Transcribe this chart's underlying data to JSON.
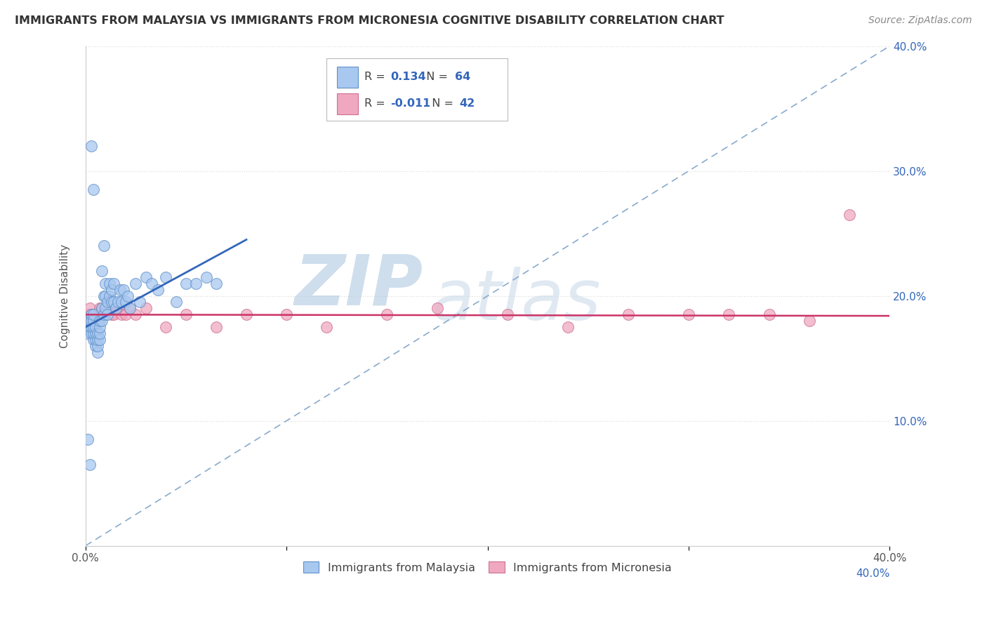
{
  "title": "IMMIGRANTS FROM MALAYSIA VS IMMIGRANTS FROM MICRONESIA COGNITIVE DISABILITY CORRELATION CHART",
  "source": "Source: ZipAtlas.com",
  "ylabel": "Cognitive Disability",
  "xlim": [
    0.0,
    0.4
  ],
  "ylim": [
    0.0,
    0.4
  ],
  "xticks": [
    0.0,
    0.1,
    0.2,
    0.3,
    0.4
  ],
  "yticks": [
    0.0,
    0.1,
    0.2,
    0.3,
    0.4
  ],
  "xticklabels": [
    "0.0%",
    "",
    "",
    "",
    "40.0%"
  ],
  "yticklabels": [
    "",
    "",
    "",
    "",
    ""
  ],
  "right_yticklabels": [
    "",
    "10.0%",
    "20.0%",
    "30.0%",
    "40.0%"
  ],
  "malaysia_color": "#a8c8f0",
  "micronesia_color": "#f0a8c0",
  "malaysia_edge": "#6090c8",
  "micronesia_edge": "#cc7090",
  "malaysia_R": 0.134,
  "malaysia_N": 64,
  "micronesia_R": -0.011,
  "micronesia_N": 42,
  "malaysia_line_color": "#3366bb",
  "micronesia_line_color": "#cc3366",
  "diag_line_color": "#88aacc",
  "watermark_zip": "ZIP",
  "watermark_atlas": "atlas",
  "watermark_color": "#c5d8ec",
  "legend_R_color": "#3366bb",
  "legend_N_color": "#3366bb",
  "right_tick_color": "#3366bb",
  "grid_color": "#dddddd",
  "malaysia_scatter_x": [
    0.001,
    0.002,
    0.002,
    0.003,
    0.003,
    0.003,
    0.003,
    0.004,
    0.004,
    0.004,
    0.004,
    0.004,
    0.005,
    0.005,
    0.005,
    0.005,
    0.006,
    0.006,
    0.006,
    0.006,
    0.007,
    0.007,
    0.007,
    0.007,
    0.008,
    0.008,
    0.008,
    0.009,
    0.009,
    0.009,
    0.01,
    0.01,
    0.01,
    0.011,
    0.011,
    0.012,
    0.012,
    0.013,
    0.013,
    0.014,
    0.014,
    0.015,
    0.016,
    0.017,
    0.018,
    0.019,
    0.02,
    0.021,
    0.022,
    0.025,
    0.027,
    0.03,
    0.033,
    0.036,
    0.04,
    0.045,
    0.05,
    0.055,
    0.06,
    0.065,
    0.001,
    0.002,
    0.003,
    0.004
  ],
  "malaysia_scatter_y": [
    0.17,
    0.175,
    0.18,
    0.17,
    0.175,
    0.18,
    0.185,
    0.165,
    0.17,
    0.175,
    0.18,
    0.185,
    0.16,
    0.165,
    0.17,
    0.175,
    0.155,
    0.16,
    0.165,
    0.17,
    0.165,
    0.17,
    0.175,
    0.18,
    0.18,
    0.19,
    0.22,
    0.185,
    0.2,
    0.24,
    0.19,
    0.2,
    0.21,
    0.185,
    0.195,
    0.2,
    0.21,
    0.195,
    0.205,
    0.195,
    0.21,
    0.19,
    0.195,
    0.205,
    0.195,
    0.205,
    0.195,
    0.2,
    0.19,
    0.21,
    0.195,
    0.215,
    0.21,
    0.205,
    0.215,
    0.195,
    0.21,
    0.21,
    0.215,
    0.21,
    0.085,
    0.065,
    0.32,
    0.285
  ],
  "micronesia_scatter_x": [
    0.001,
    0.002,
    0.003,
    0.003,
    0.004,
    0.004,
    0.005,
    0.005,
    0.006,
    0.006,
    0.007,
    0.007,
    0.008,
    0.009,
    0.01,
    0.011,
    0.012,
    0.013,
    0.014,
    0.015,
    0.016,
    0.018,
    0.02,
    0.022,
    0.025,
    0.03,
    0.04,
    0.05,
    0.065,
    0.08,
    0.1,
    0.12,
    0.15,
    0.175,
    0.21,
    0.24,
    0.27,
    0.3,
    0.32,
    0.34,
    0.36,
    0.38
  ],
  "micronesia_scatter_y": [
    0.185,
    0.19,
    0.18,
    0.185,
    0.175,
    0.185,
    0.18,
    0.185,
    0.18,
    0.185,
    0.185,
    0.19,
    0.19,
    0.185,
    0.185,
    0.19,
    0.19,
    0.185,
    0.185,
    0.19,
    0.19,
    0.185,
    0.185,
    0.19,
    0.185,
    0.19,
    0.175,
    0.185,
    0.175,
    0.185,
    0.185,
    0.175,
    0.185,
    0.19,
    0.185,
    0.175,
    0.185,
    0.185,
    0.185,
    0.185,
    0.18,
    0.265
  ],
  "malaysia_line_x": [
    0.0,
    0.08
  ],
  "malaysia_line_y_start": 0.175,
  "malaysia_line_y_end": 0.245,
  "micronesia_line_y": 0.185
}
